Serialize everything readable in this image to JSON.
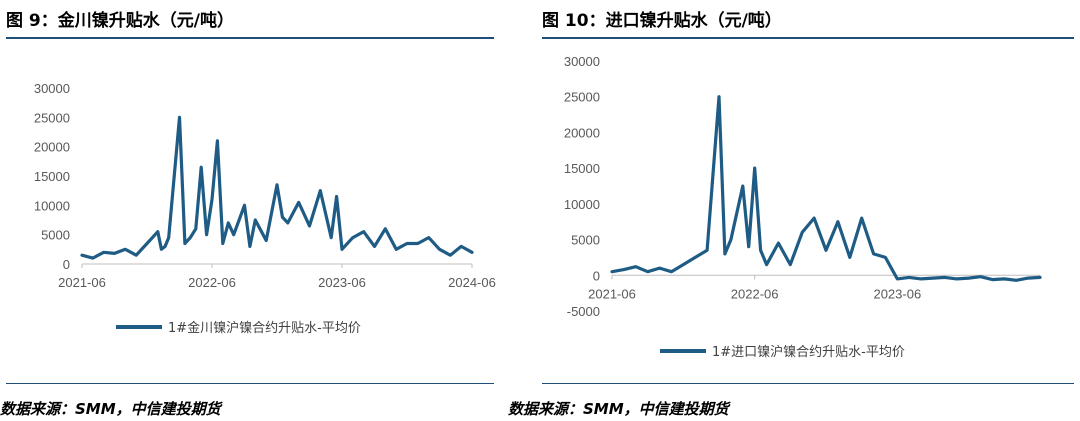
{
  "panels": [
    {
      "title": "图 9：金川镍升贴水（元/吨）",
      "source": "数据来源：SMM，中信建投期货"
    },
    {
      "title": "图 10：进口镍升贴水（元/吨）",
      "source": "数据来源：SMM，中信建投期货"
    }
  ],
  "chart_data": [
    {
      "type": "line",
      "title": "图 9：金川镍升贴水（元/吨）",
      "xlabel": "",
      "ylabel": "",
      "ylim": [
        0,
        30000
      ],
      "yticks": [
        0,
        5000,
        10000,
        15000,
        20000,
        25000,
        30000
      ],
      "xticks": [
        "2021-06",
        "2022-06",
        "2023-06",
        "2024-06"
      ],
      "xlim": [
        "2021-06",
        "2024-06"
      ],
      "legend_position": "bottom",
      "series": [
        {
          "name": "1#金川镍沪镍合约升贴水-平均价",
          "color": "#1f5c85",
          "x": [
            "2021-06",
            "2021-07",
            "2021-08",
            "2021-09",
            "2021-10",
            "2021-11",
            "2021-12",
            "2022-01",
            "2022-01",
            "2022-01",
            "2022-02",
            "2022-03",
            "2022-03",
            "2022-04",
            "2022-04",
            "2022-05",
            "2022-05",
            "2022-06",
            "2022-06",
            "2022-07",
            "2022-07",
            "2022-08",
            "2022-09",
            "2022-09",
            "2022-10",
            "2022-11",
            "2022-12",
            "2022-12",
            "2023-01",
            "2023-02",
            "2023-03",
            "2023-04",
            "2023-05",
            "2023-05",
            "2023-06",
            "2023-07",
            "2023-08",
            "2023-09",
            "2023-10",
            "2023-11",
            "2023-12",
            "2024-01",
            "2024-02",
            "2024-03",
            "2024-04",
            "2024-05",
            "2024-06"
          ],
          "values": [
            1500,
            1000,
            2000,
            1800,
            2500,
            1500,
            3500,
            5500,
            2500,
            3000,
            4500,
            25000,
            3500,
            4500,
            6000,
            16500,
            5000,
            11000,
            21000,
            3500,
            7000,
            5000,
            10000,
            3000,
            7500,
            4000,
            13500,
            8000,
            7000,
            10500,
            6500,
            12500,
            4500,
            11500,
            2500,
            4500,
            5500,
            3000,
            6000,
            2500,
            3500,
            3500,
            4500,
            2500,
            1500,
            3000,
            2000
          ],
          "points": [
            [
              "2021-06",
              1500
            ],
            [
              "2021-07",
              1000
            ],
            [
              "2021-08",
              2000
            ],
            [
              "2021-09",
              1800
            ],
            [
              "2021-10",
              2500
            ],
            [
              "2021-11",
              1500
            ],
            [
              "2021-12",
              3500
            ],
            [
              "2022-01",
              5500
            ]
          ]
        }
      ]
    },
    {
      "type": "line",
      "title": "图 10：进口镍升贴水（元/吨）",
      "xlabel": "",
      "ylabel": "",
      "ylim": [
        -5000,
        30000
      ],
      "yticks": [
        -5000,
        0,
        5000,
        10000,
        15000,
        20000,
        25000,
        30000
      ],
      "xticks": [
        "2021-06",
        "2022-06",
        "2023-06"
      ],
      "xlim": [
        "2021-06",
        "2024-06"
      ],
      "legend_position": "bottom",
      "series": [
        {
          "name": "1#进口镍沪镍合约升贴水-平均价",
          "color": "#1f5c85",
          "x": [
            "2021-06",
            "2021-07",
            "2021-08",
            "2021-09",
            "2021-10",
            "2021-11",
            "2021-12",
            "2022-01",
            "2022-02",
            "2022-03",
            "2022-03",
            "2022-04",
            "2022-05",
            "2022-05",
            "2022-06",
            "2022-06",
            "2022-07",
            "2022-08",
            "2022-09",
            "2022-10",
            "2022-11",
            "2022-12",
            "2023-01",
            "2023-02",
            "2023-03",
            "2023-04",
            "2023-05",
            "2023-06",
            "2023-07",
            "2023-08",
            "2023-09",
            "2023-10",
            "2023-11",
            "2023-12",
            "2024-01",
            "2024-02",
            "2024-03",
            "2024-04",
            "2024-05",
            "2024-06"
          ],
          "values": [
            500,
            800,
            1200,
            500,
            1000,
            500,
            1500,
            2500,
            3500,
            25000,
            3000,
            5000,
            12500,
            4000,
            15000,
            3500,
            1500,
            4500,
            1500,
            6000,
            8000,
            3500,
            7500,
            2500,
            8000,
            3000,
            2500,
            -500,
            -300,
            -500,
            -400,
            -300,
            -500,
            -400,
            -200,
            -600,
            -500,
            -700,
            -400,
            -300
          ]
        }
      ]
    }
  ]
}
